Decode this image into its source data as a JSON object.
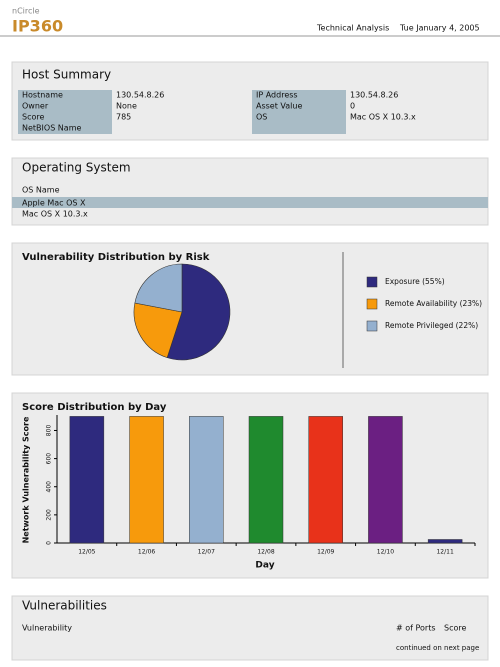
{
  "header": {
    "brand": "nCircle",
    "product": "IP360",
    "report": "Technical Analysis",
    "date": "Tue January 4, 2005"
  },
  "host_summary": {
    "title": "Host Summary",
    "rows": [
      [
        "Hostname",
        "130.54.8.26",
        "IP Address",
        "130.54.8.26"
      ],
      [
        "Owner",
        "None",
        "Asset Value",
        "0"
      ],
      [
        "Score",
        "785",
        "OS",
        "Mac OS X 10.3.x"
      ],
      [
        "NetBIOS Name"
      ]
    ]
  },
  "operating_system": {
    "title": "Operating System",
    "header": "OS Name",
    "rows": [
      "Apple Mac OS X",
      "Mac OS X 10.3.x"
    ]
  },
  "risk_chart": {
    "type": "pie",
    "title": "Vulnerability Distribution by Risk",
    "labels": [
      "Exposure (55%)",
      "Remote Availability (23%)",
      "Remote Privileged (22%)"
    ],
    "values": [
      55,
      23,
      22
    ],
    "colors": [
      "#2e2a7e",
      "#f79a0c",
      "#94b0cf"
    ]
  },
  "day_chart": {
    "type": "bar",
    "title": "Score Distribution by Day",
    "ylabel": "Network Vulnerability Score",
    "xlabel": "Day",
    "categories": [
      "12/05",
      "12/06",
      "12/07",
      "12/08",
      "12/09",
      "12/10",
      "12/11"
    ],
    "values": [
      900,
      900,
      900,
      900,
      900,
      900,
      25
    ],
    "colors": [
      "#2e2a7e",
      "#f79a0c",
      "#94b0cf",
      "#1f8a2e",
      "#e8321a",
      "#6b1f82",
      "#2e2a7e"
    ],
    "ylim": [
      0,
      910
    ],
    "yticks": [
      0,
      200,
      400,
      600,
      800
    ],
    "grid": false
  },
  "vulnerabilities": {
    "title": "Vulnerabilities",
    "columns": [
      "Vulnerability",
      "# of Ports",
      "Score"
    ],
    "note": "continued on next page"
  }
}
